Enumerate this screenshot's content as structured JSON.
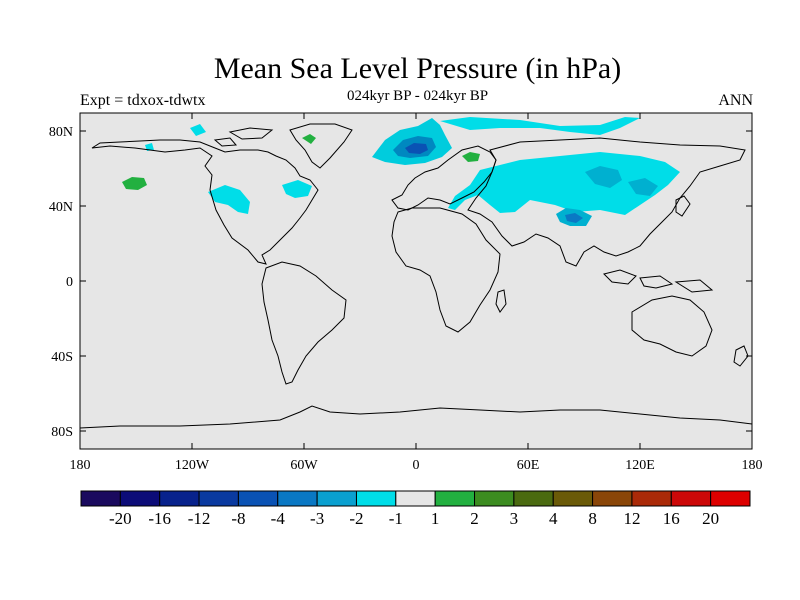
{
  "title": "Mean Sea Level Pressure (in hPa)",
  "subtitle": "024kyr BP - 024kyr BP",
  "experiment_label": "Expt = tdxox-tdwtx",
  "season_label": "ANN",
  "map": {
    "type": "contour-map",
    "projection": "cylindrical equidistant",
    "lon_range": [
      -180,
      180
    ],
    "lat_range": [
      -90,
      90
    ],
    "x_ticks": [
      "180",
      "120W",
      "60W",
      "0",
      "60E",
      "120E",
      "180"
    ],
    "y_ticks": [
      "80N",
      "40N",
      "0",
      "40S",
      "80S"
    ],
    "background_color": "#e6e6e6",
    "regions": [
      {
        "name": "north-atlantic-low",
        "level": "-2",
        "color": "#00ccdd"
      },
      {
        "name": "iceland-low-core",
        "level": "-4",
        "color": "#0088c0"
      },
      {
        "name": "arctic-band",
        "level": "-1",
        "color": "#00dde8"
      },
      {
        "name": "eurasia-low",
        "level": "-1",
        "color": "#00dde8"
      },
      {
        "name": "siberia-core",
        "level": "-2",
        "color": "#00b0d0"
      },
      {
        "name": "tibet-low",
        "level": "-2",
        "color": "#00b0d0"
      },
      {
        "name": "north-america-low",
        "level": "-1",
        "color": "#00dde8"
      },
      {
        "name": "alaska-high",
        "level": "1",
        "color": "#22b040"
      },
      {
        "name": "scandinavia-high",
        "level": "1",
        "color": "#22b040"
      },
      {
        "name": "greenland-high",
        "level": "1",
        "color": "#22b040"
      }
    ]
  },
  "colorbar": {
    "labels": [
      "-20",
      "-16",
      "-12",
      "-8",
      "-4",
      "-3",
      "-2",
      "-1",
      "1",
      "2",
      "3",
      "4",
      "8",
      "12",
      "16",
      "20"
    ],
    "colors": [
      "#1a0a5e",
      "#0c0c78",
      "#08228c",
      "#0a3aa0",
      "#0a52b4",
      "#0a78c4",
      "#0aa0d0",
      "#00dde8",
      "#e6e6e6",
      "#22b040",
      "#3c8c20",
      "#4a6a10",
      "#6a5a08",
      "#8a4608",
      "#aa2a08",
      "#cc0808",
      "#dd0000"
    ]
  }
}
